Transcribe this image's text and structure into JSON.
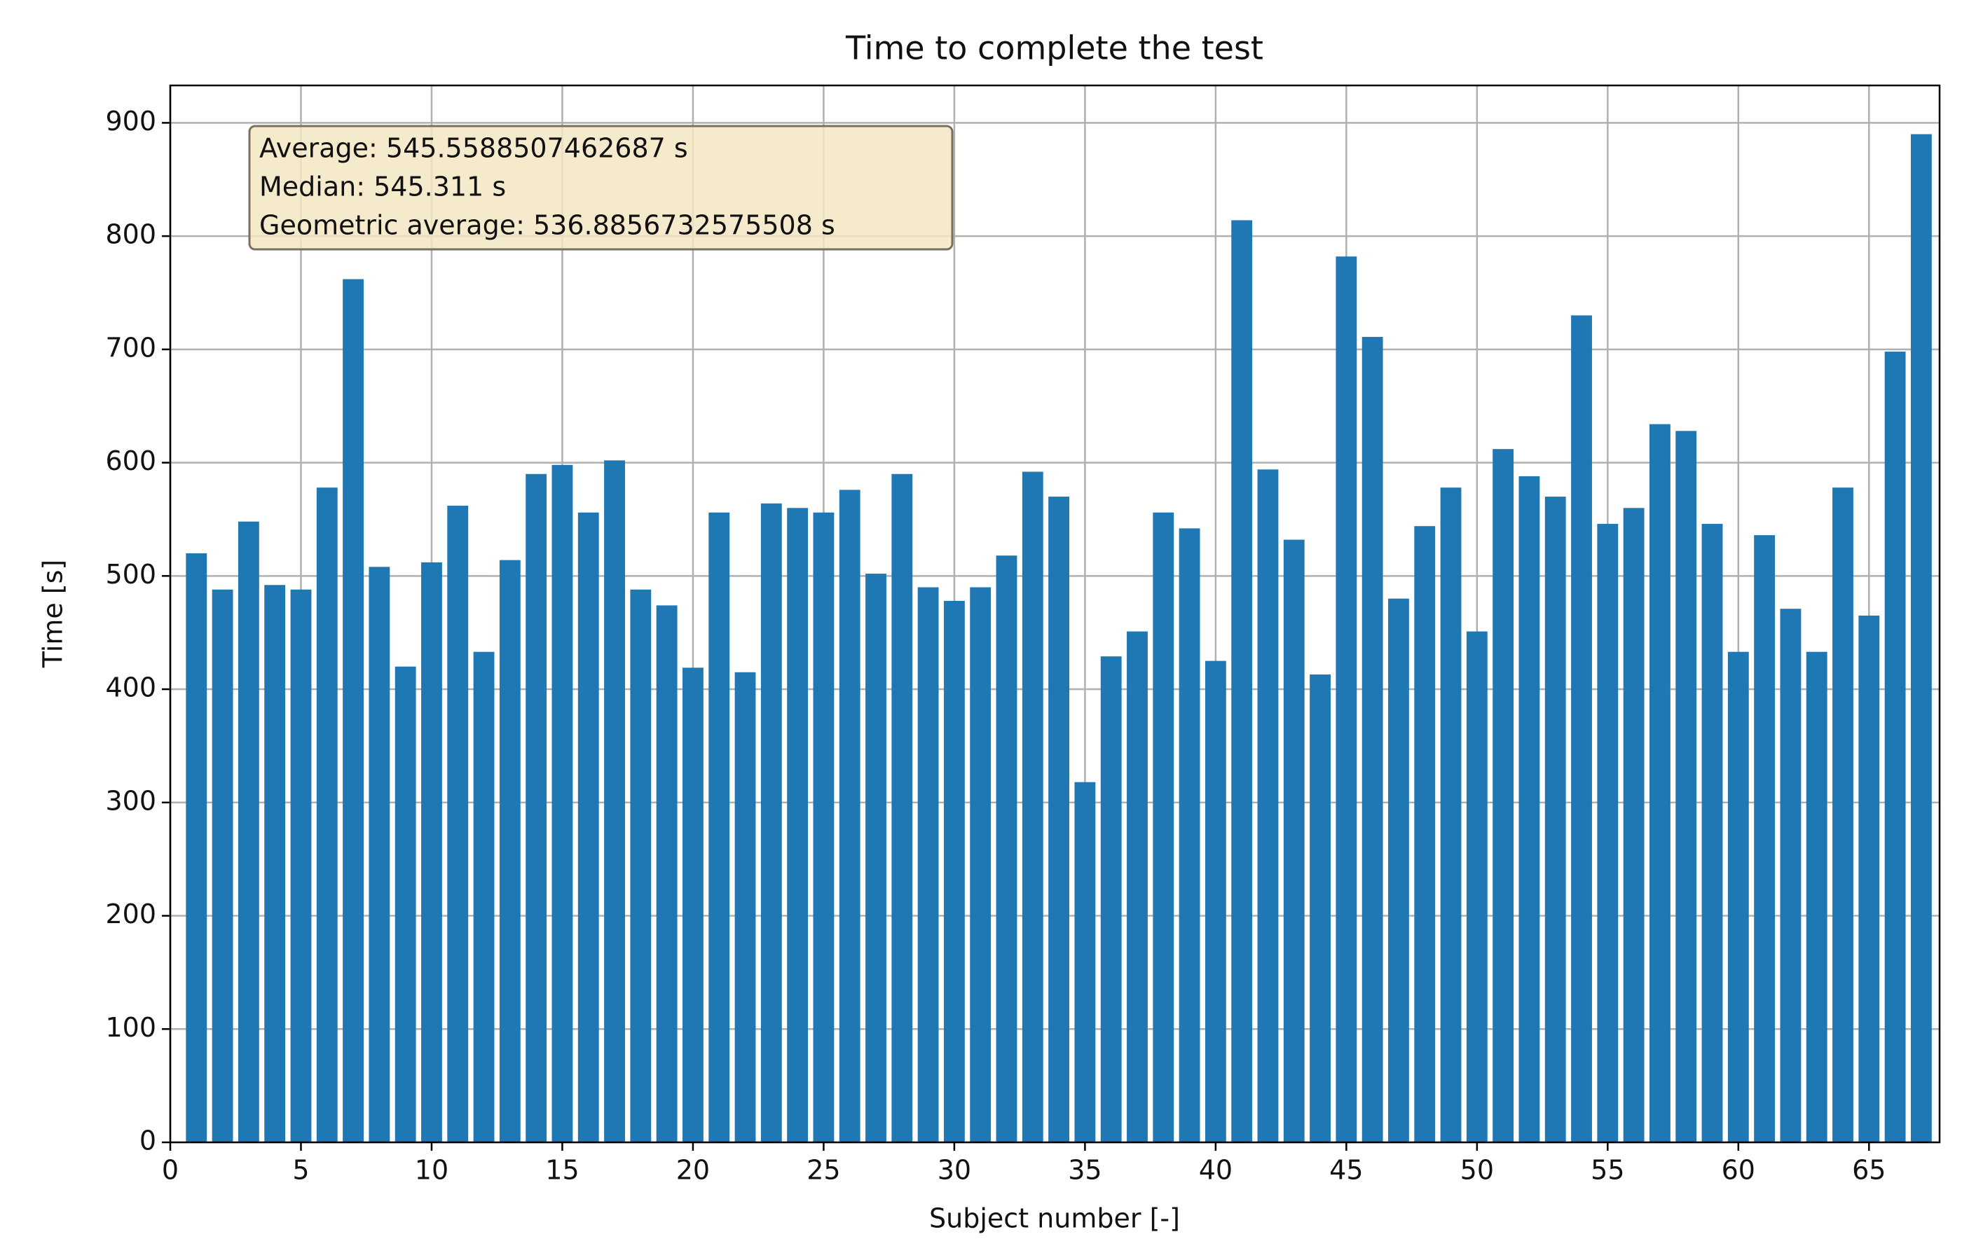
{
  "chart_data": {
    "type": "bar",
    "title": "Time to complete the test",
    "x_label": "Subject number [-]",
    "y_label": "Time [s]",
    "annotations": [
      "Average: 545.5588507462687 s",
      "Median: 545.311 s",
      "Geometric average: 536.8856732575508 s"
    ],
    "x": [
      1,
      2,
      3,
      4,
      5,
      6,
      7,
      8,
      9,
      10,
      11,
      12,
      13,
      14,
      15,
      16,
      17,
      18,
      19,
      20,
      21,
      22,
      23,
      24,
      25,
      26,
      27,
      28,
      29,
      30,
      31,
      32,
      33,
      34,
      35,
      36,
      37,
      38,
      39,
      40,
      41,
      42,
      43,
      44,
      45,
      46,
      47,
      48,
      49,
      50,
      51,
      52,
      53,
      54,
      55,
      56,
      57,
      58,
      59,
      60,
      61,
      62,
      63,
      64,
      65,
      66,
      67
    ],
    "values": [
      520,
      488,
      548,
      492,
      488,
      578,
      762,
      508,
      420,
      512,
      562,
      433,
      514,
      590,
      598,
      556,
      602,
      488,
      474,
      419,
      556,
      415,
      564,
      560,
      556,
      576,
      502,
      590,
      490,
      478,
      490,
      518,
      592,
      570,
      318,
      429,
      451,
      556,
      542,
      425,
      814,
      594,
      532,
      413,
      782,
      711,
      480,
      544,
      578,
      451,
      612,
      588,
      570,
      730,
      546,
      560,
      634,
      628,
      546,
      433,
      536,
      471,
      433,
      578,
      465,
      698,
      890
    ],
    "color": "#1f77b4",
    "xlim": [
      0,
      67.7
    ],
    "ylim": [
      0,
      933
    ],
    "xticks": [
      0,
      5,
      10,
      15,
      20,
      25,
      30,
      35,
      40,
      45,
      50,
      55,
      60,
      65
    ],
    "yticks": [
      0,
      100,
      200,
      300,
      400,
      500,
      600,
      700,
      800,
      900
    ],
    "grid": true
  }
}
